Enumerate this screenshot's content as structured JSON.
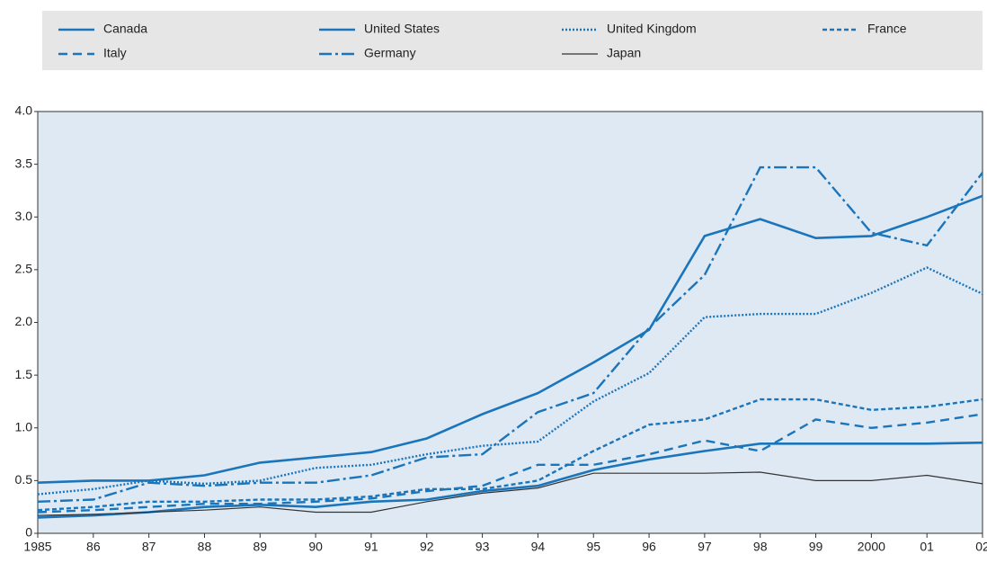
{
  "chart_data": {
    "type": "line",
    "categories": [
      "1985",
      "86",
      "87",
      "88",
      "89",
      "90",
      "91",
      "92",
      "93",
      "94",
      "95",
      "96",
      "97",
      "98",
      "99",
      "2000",
      "01",
      "02"
    ],
    "series": [
      {
        "name": "Canada",
        "color": "#1a75bb",
        "dash": "none",
        "width": 2.6,
        "values": [
          0.15,
          0.17,
          0.2,
          0.25,
          0.27,
          0.25,
          0.3,
          0.32,
          0.4,
          0.45,
          0.6,
          0.7,
          0.78,
          0.85,
          0.85,
          0.85,
          0.85,
          0.86
        ]
      },
      {
        "name": "United States",
        "color": "#1a75bb",
        "dash": "none",
        "width": 2.6,
        "values": [
          0.48,
          0.5,
          0.5,
          0.55,
          0.67,
          0.72,
          0.77,
          0.9,
          1.13,
          1.33,
          1.62,
          1.93,
          2.82,
          2.98,
          2.8,
          2.82,
          3.0,
          3.2
        ]
      },
      {
        "name": "United Kingdom",
        "color": "#1a75bb",
        "dash": "2,2",
        "width": 2.4,
        "values": [
          0.37,
          0.42,
          0.5,
          0.47,
          0.5,
          0.62,
          0.65,
          0.75,
          0.83,
          0.87,
          1.25,
          1.52,
          2.05,
          2.08,
          2.08,
          2.28,
          2.52,
          2.27
        ]
      },
      {
        "name": "France",
        "color": "#1a75bb",
        "dash": "5,3",
        "width": 2.4,
        "values": [
          0.22,
          0.25,
          0.3,
          0.3,
          0.32,
          0.32,
          0.35,
          0.42,
          0.42,
          0.5,
          0.78,
          1.03,
          1.08,
          1.27,
          1.27,
          1.17,
          1.2,
          1.27
        ]
      },
      {
        "name": "Italy",
        "color": "#1a75bb",
        "dash": "10,6",
        "width": 2.4,
        "values": [
          0.2,
          0.22,
          0.25,
          0.28,
          0.28,
          0.3,
          0.33,
          0.4,
          0.45,
          0.65,
          0.65,
          0.75,
          0.88,
          0.78,
          1.08,
          1.0,
          1.05,
          1.13
        ]
      },
      {
        "name": "Germany",
        "color": "#1a75bb",
        "dash": "14,4,3,4",
        "width": 2.4,
        "values": [
          0.3,
          0.32,
          0.48,
          0.45,
          0.48,
          0.48,
          0.55,
          0.72,
          0.75,
          1.15,
          1.33,
          1.95,
          2.45,
          3.47,
          3.47,
          2.85,
          2.73,
          3.42
        ]
      },
      {
        "name": "Japan",
        "color": "#333333",
        "dash": "none",
        "width": 1.2,
        "values": [
          0.17,
          0.18,
          0.2,
          0.22,
          0.25,
          0.2,
          0.2,
          0.3,
          0.38,
          0.43,
          0.57,
          0.57,
          0.57,
          0.58,
          0.5,
          0.5,
          0.55,
          0.47
        ]
      }
    ],
    "ylim": [
      0,
      4
    ],
    "yticks": [
      0,
      0.5,
      {
        "value": 1,
        "label": "1.0"
      },
      1.5,
      {
        "value": 2,
        "label": "2.0"
      },
      2.5,
      {
        "value": 3,
        "label": "3.0"
      },
      3.5,
      {
        "value": 4,
        "label": "4.0"
      }
    ]
  }
}
